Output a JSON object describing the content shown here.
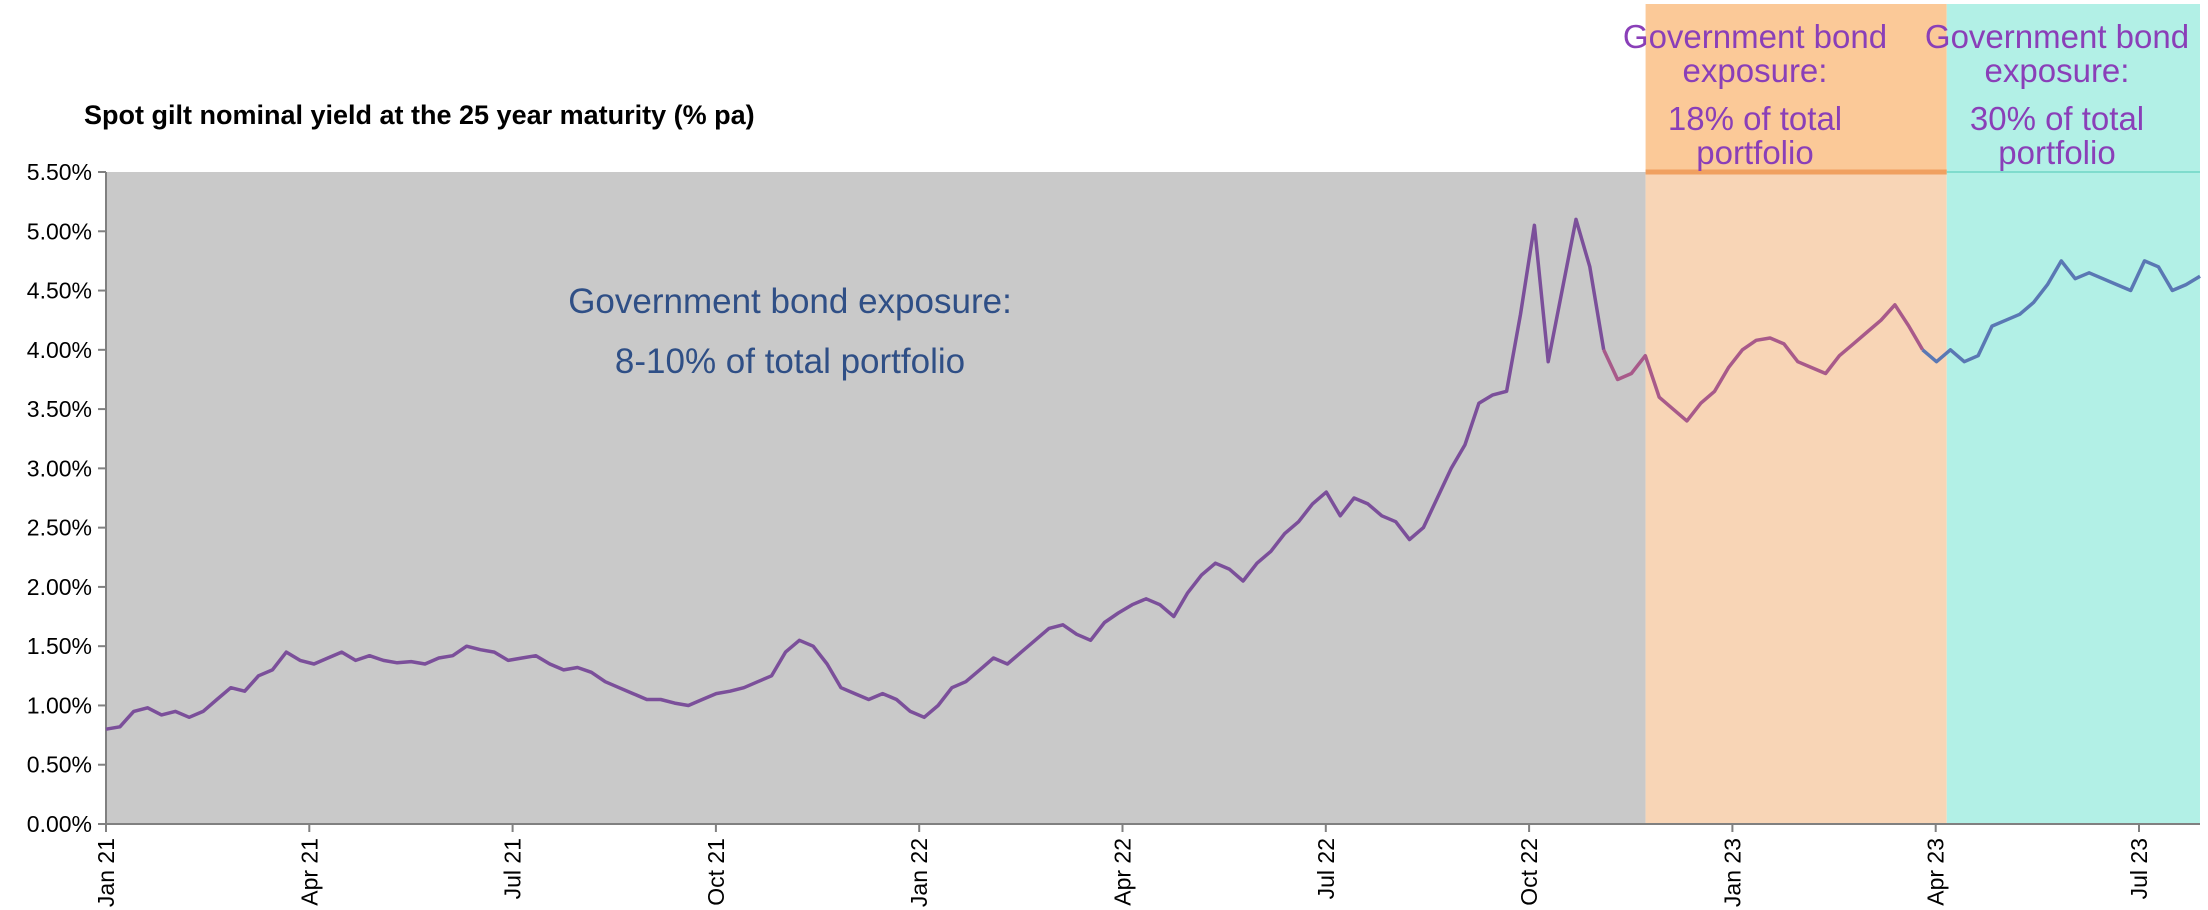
{
  "chart_data": {
    "type": "line",
    "title": "Spot gilt nominal yield at the 25 year maturity (% pa)",
    "ylim": [
      0,
      5.5
    ],
    "y_ticks": [
      "0.00%",
      "0.50%",
      "1.00%",
      "1.50%",
      "2.00%",
      "2.50%",
      "3.00%",
      "3.50%",
      "4.00%",
      "4.50%",
      "5.00%",
      "5.50%"
    ],
    "x_tick_labels": [
      "Jan 21",
      "Apr 21",
      "Jul 21",
      "Oct 21",
      "Jan 22",
      "Apr 22",
      "Jul 22",
      "Oct 22",
      "Jan 23",
      "Apr 23",
      "Jul 23"
    ],
    "grid": false,
    "series": [
      {
        "values": [
          [
            "2021-01-01",
            0.8
          ],
          [
            "2021-01-08",
            0.82
          ],
          [
            "2021-01-15",
            0.95
          ],
          [
            "2021-01-22",
            0.98
          ],
          [
            "2021-01-29",
            0.92
          ],
          [
            "2021-02-05",
            0.95
          ],
          [
            "2021-02-12",
            0.9
          ],
          [
            "2021-02-19",
            0.95
          ],
          [
            "2021-02-26",
            1.05
          ],
          [
            "2021-03-05",
            1.15
          ],
          [
            "2021-03-12",
            1.12
          ],
          [
            "2021-03-19",
            1.25
          ],
          [
            "2021-03-26",
            1.3
          ],
          [
            "2021-04-02",
            1.45
          ],
          [
            "2021-04-09",
            1.38
          ],
          [
            "2021-04-16",
            1.35
          ],
          [
            "2021-04-23",
            1.4
          ],
          [
            "2021-04-30",
            1.45
          ],
          [
            "2021-05-07",
            1.38
          ],
          [
            "2021-05-14",
            1.42
          ],
          [
            "2021-05-21",
            1.38
          ],
          [
            "2021-05-28",
            1.36
          ],
          [
            "2021-06-04",
            1.37
          ],
          [
            "2021-06-11",
            1.35
          ],
          [
            "2021-06-18",
            1.4
          ],
          [
            "2021-06-25",
            1.42
          ],
          [
            "2021-07-02",
            1.5
          ],
          [
            "2021-07-09",
            1.47
          ],
          [
            "2021-07-16",
            1.45
          ],
          [
            "2021-07-23",
            1.38
          ],
          [
            "2021-07-30",
            1.4
          ],
          [
            "2021-08-06",
            1.42
          ],
          [
            "2021-08-13",
            1.35
          ],
          [
            "2021-08-20",
            1.3
          ],
          [
            "2021-08-27",
            1.32
          ],
          [
            "2021-09-03",
            1.28
          ],
          [
            "2021-09-10",
            1.2
          ],
          [
            "2021-09-17",
            1.15
          ],
          [
            "2021-09-24",
            1.1
          ],
          [
            "2021-10-01",
            1.05
          ],
          [
            "2021-10-08",
            1.05
          ],
          [
            "2021-10-15",
            1.02
          ],
          [
            "2021-10-22",
            1.0
          ],
          [
            "2021-10-29",
            1.05
          ],
          [
            "2021-11-05",
            1.1
          ],
          [
            "2021-11-12",
            1.12
          ],
          [
            "2021-11-19",
            1.15
          ],
          [
            "2021-11-26",
            1.2
          ],
          [
            "2021-12-03",
            1.25
          ],
          [
            "2021-12-10",
            1.45
          ],
          [
            "2021-12-17",
            1.55
          ],
          [
            "2021-12-24",
            1.5
          ],
          [
            "2021-12-31",
            1.35
          ],
          [
            "2022-01-07",
            1.15
          ],
          [
            "2022-01-14",
            1.1
          ],
          [
            "2022-01-21",
            1.05
          ],
          [
            "2022-01-28",
            1.1
          ],
          [
            "2022-02-04",
            1.05
          ],
          [
            "2022-02-11",
            0.95
          ],
          [
            "2022-02-18",
            0.9
          ],
          [
            "2022-02-25",
            1.0
          ],
          [
            "2022-03-04",
            1.15
          ],
          [
            "2022-03-11",
            1.2
          ],
          [
            "2022-03-18",
            1.3
          ],
          [
            "2022-03-25",
            1.4
          ],
          [
            "2022-04-01",
            1.35
          ],
          [
            "2022-04-08",
            1.45
          ],
          [
            "2022-04-15",
            1.55
          ],
          [
            "2022-04-22",
            1.65
          ],
          [
            "2022-04-29",
            1.68
          ],
          [
            "2022-05-06",
            1.6
          ],
          [
            "2022-05-13",
            1.55
          ],
          [
            "2022-05-20",
            1.7
          ],
          [
            "2022-05-27",
            1.78
          ],
          [
            "2022-06-03",
            1.85
          ],
          [
            "2022-06-10",
            1.9
          ],
          [
            "2022-06-17",
            1.85
          ],
          [
            "2022-06-24",
            1.75
          ],
          [
            "2022-07-01",
            1.95
          ],
          [
            "2022-07-08",
            2.1
          ],
          [
            "2022-07-15",
            2.2
          ],
          [
            "2022-07-22",
            2.15
          ],
          [
            "2022-07-29",
            2.05
          ],
          [
            "2022-08-05",
            2.2
          ],
          [
            "2022-08-12",
            2.3
          ],
          [
            "2022-08-19",
            2.45
          ],
          [
            "2022-08-26",
            2.55
          ],
          [
            "2022-09-02",
            2.7
          ],
          [
            "2022-09-09",
            2.8
          ],
          [
            "2022-09-16",
            2.6
          ],
          [
            "2022-09-23",
            2.75
          ],
          [
            "2022-09-30",
            2.7
          ],
          [
            "2022-10-07",
            2.6
          ],
          [
            "2022-10-14",
            2.55
          ],
          [
            "2022-10-21",
            2.4
          ],
          [
            "2022-10-28",
            2.5
          ],
          [
            "2022-11-04",
            2.75
          ],
          [
            "2022-11-11",
            3.0
          ],
          [
            "2022-11-18",
            3.2
          ],
          [
            "2022-11-25",
            3.55
          ],
          [
            "2022-12-02",
            3.62
          ],
          [
            "2022-12-09",
            3.65
          ],
          [
            "2022-12-16",
            4.3
          ],
          [
            "2022-12-20",
            5.05
          ],
          [
            "2022-12-23",
            3.9
          ],
          [
            "2022-12-30",
            4.5
          ],
          [
            "2023-01-06",
            5.1
          ],
          [
            "2023-01-13",
            4.7
          ],
          [
            "2023-01-20",
            4.0
          ],
          [
            "2023-01-27",
            3.75
          ],
          [
            "2023-02-03",
            3.8
          ],
          [
            "2023-02-10",
            3.95
          ],
          [
            "2023-02-17",
            3.6
          ],
          [
            "2023-02-24",
            3.5
          ],
          [
            "2023-03-03",
            3.4
          ],
          [
            "2023-03-10",
            3.55
          ],
          [
            "2023-03-17",
            3.65
          ],
          [
            "2023-03-24",
            3.85
          ],
          [
            "2023-03-31",
            4.0
          ],
          [
            "2023-04-07",
            4.08
          ],
          [
            "2023-04-14",
            4.1
          ],
          [
            "2023-04-21",
            4.05
          ],
          [
            "2023-04-28",
            3.9
          ],
          [
            "2023-05-05",
            3.85
          ],
          [
            "2023-05-12",
            3.8
          ],
          [
            "2023-05-19",
            3.95
          ],
          [
            "2023-05-26",
            4.05
          ],
          [
            "2023-06-02",
            4.15
          ],
          [
            "2023-06-09",
            4.25
          ],
          [
            "2023-06-16",
            4.38
          ],
          [
            "2023-06-23",
            4.2
          ],
          [
            "2023-06-30",
            4.0
          ],
          [
            "2023-07-07",
            3.9
          ],
          [
            "2023-07-14",
            4.0
          ],
          [
            "2023-07-21",
            3.9
          ],
          [
            "2023-07-28",
            3.95
          ],
          [
            "2023-08-04",
            4.2
          ],
          [
            "2023-08-11",
            4.25
          ],
          [
            "2023-08-18",
            4.3
          ],
          [
            "2023-08-25",
            4.4
          ],
          [
            "2023-09-01",
            4.55
          ],
          [
            "2023-09-08",
            4.75
          ],
          [
            "2023-09-15",
            4.6
          ],
          [
            "2023-09-22",
            4.65
          ],
          [
            "2023-09-29",
            4.6
          ],
          [
            "2023-10-06",
            4.55
          ],
          [
            "2023-10-13",
            4.5
          ],
          [
            "2023-10-20",
            4.75
          ],
          [
            "2023-10-27",
            4.7
          ],
          [
            "2023-11-03",
            4.5
          ],
          [
            "2023-11-10",
            4.55
          ],
          [
            "2023-11-17",
            4.62
          ]
        ]
      }
    ],
    "regions": [
      {
        "label": "Government bond exposure:",
        "sublabel": "8-10% of total portfolio",
        "start": "2021-01-01",
        "end": "2023-02-12",
        "color": "#c9c9c9",
        "text_color": "#2f4f86",
        "line_color": "#7b4f9a"
      },
      {
        "label_line1": "Government bond",
        "label_line2": "exposure:",
        "sub_line1": "18% of total",
        "sub_line2": "portfolio",
        "start": "2023-02-12",
        "end": "2023-07-13",
        "color": "#f8d5b6",
        "header_color": "#fbc998",
        "text_color": "#8a3fb8",
        "line_color": "#a85a8a"
      },
      {
        "label_line1": "Government bond",
        "label_line2": "exposure:",
        "sub_line1": "30% of total",
        "sub_line2": "portfolio",
        "start": "2023-07-13",
        "end": "2023-11-17",
        "color": "#b2f0e6",
        "header_color": "#b2f0e6",
        "text_color": "#8a3fb8",
        "line_color": "#5a78b4"
      }
    ]
  }
}
